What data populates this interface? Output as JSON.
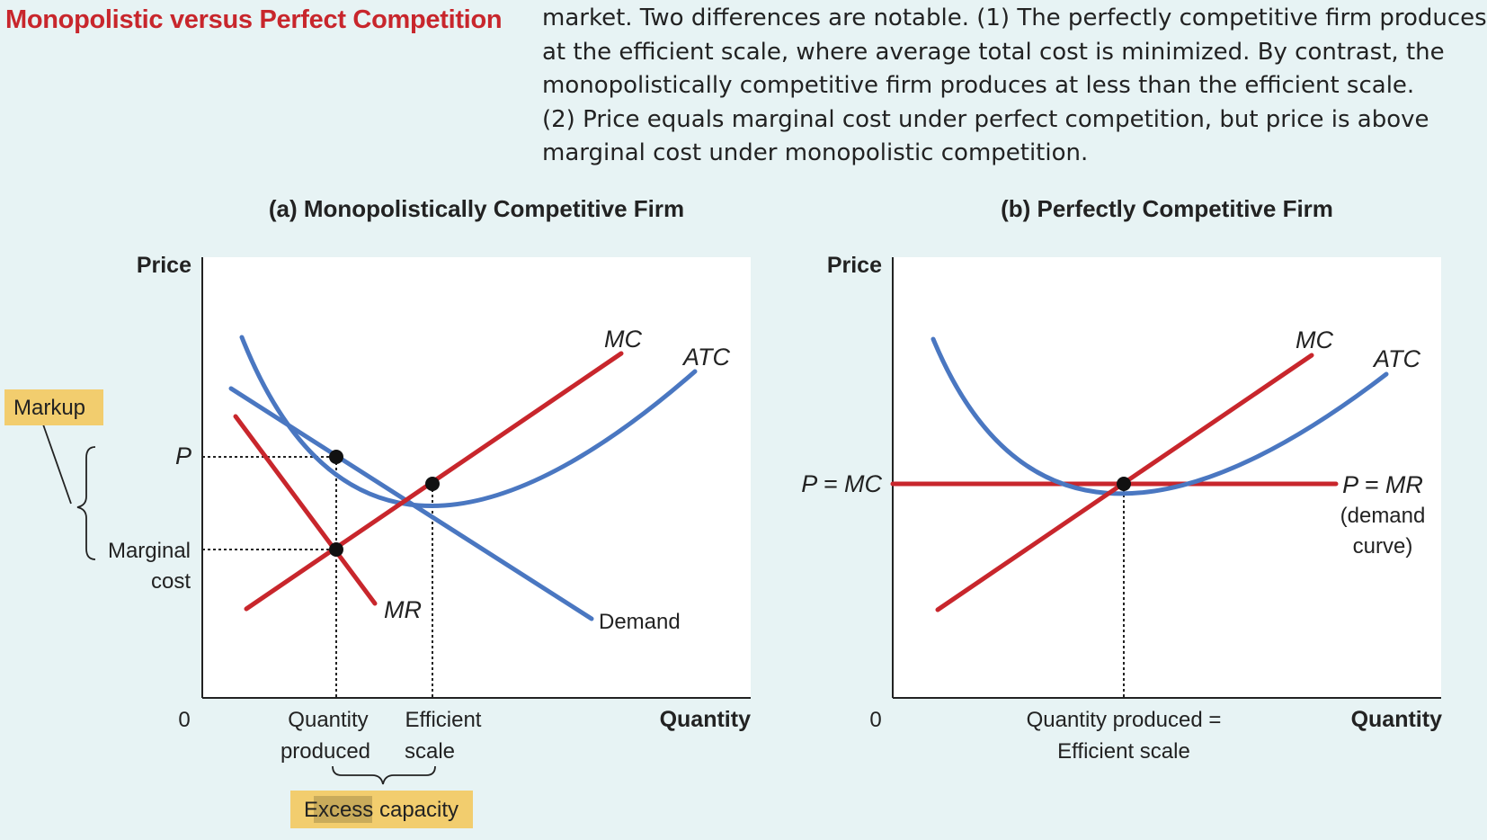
{
  "figure": {
    "title": "Monopolistic versus Perfect Competition",
    "caption_lines": [
      "market. Two differences are notable. (1) The perfectly competitive firm produces",
      "at the efficient scale, where average total cost is minimized. By contrast, the",
      "monopolistically competitive firm produces at less than the efficient scale.",
      "(2) Price equals marginal cost under perfect competition, but price is above",
      "marginal cost under monopolistic competition."
    ]
  },
  "panel_a": {
    "title": "(a) Monopolistically Competitive Firm",
    "y_axis_label": "Price",
    "x_axis_label": "Quantity",
    "origin": "0",
    "mc_label": "MC",
    "atc_label": "ATC",
    "mr_label": "MR",
    "demand_label": "Demand",
    "p_label": "P",
    "marginal_cost_label_1": "Marginal",
    "marginal_cost_label_2": "cost",
    "markup_label": "Markup",
    "qty_produced_1": "Quantity",
    "qty_produced_2": "produced",
    "efficient_scale_1": "Efficient",
    "efficient_scale_2": "scale",
    "excess_capacity": "Excess capacity"
  },
  "panel_b": {
    "title": "(b) Perfectly Competitive Firm",
    "y_axis_label": "Price",
    "x_axis_label": "Quantity",
    "origin": "0",
    "mc_label": "MC",
    "atc_label": "ATC",
    "p_mc_label": "P = MC",
    "p_mr_label": "P = MR",
    "demand_curve_1": "(demand",
    "demand_curve_2": "curve)",
    "qty_label_1": "Quantity produced =",
    "qty_label_2": "Efficient scale"
  },
  "colors": {
    "blue": "#4a77c1",
    "red": "#c8262c",
    "markup_box": "#f2cd6e",
    "title_red": "#c8262c"
  }
}
